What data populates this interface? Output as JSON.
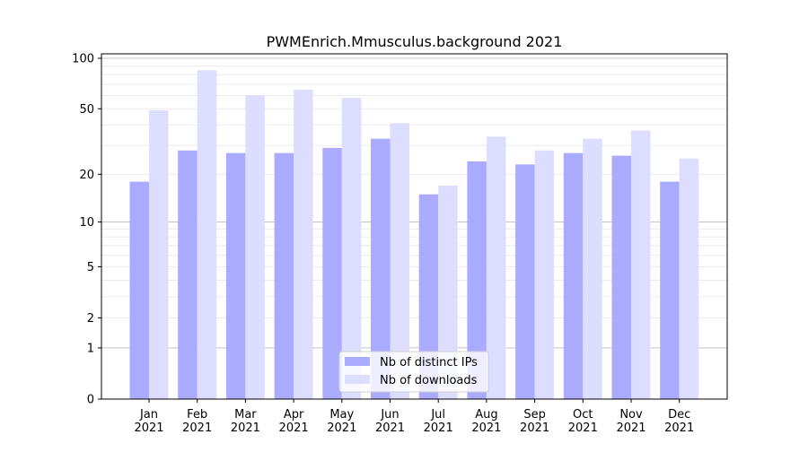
{
  "chart_data": {
    "type": "bar",
    "title": "PWMEnrich.Mmusculus.background 2021",
    "xlabel": "",
    "ylabel": "",
    "yscale": "log(y+1)",
    "ylim": [
      0,
      100
    ],
    "yticks": [
      0,
      1,
      2,
      5,
      10,
      20,
      50,
      100
    ],
    "grid": true,
    "legend_placement": "bottom-center",
    "categories": [
      "Jan\n2021",
      "Feb\n2021",
      "Mar\n2021",
      "Apr\n2021",
      "May\n2021",
      "Jun\n2021",
      "Jul\n2021",
      "Aug\n2021",
      "Sep\n2021",
      "Oct\n2021",
      "Nov\n2021",
      "Dec\n2021"
    ],
    "series": [
      {
        "name": "Nb of distinct IPs",
        "color": "#aaaaff",
        "values": [
          18,
          28,
          27,
          27,
          29,
          33,
          15,
          24,
          23,
          27,
          26,
          18
        ]
      },
      {
        "name": "Nb of downloads",
        "color": "#ddddff",
        "values": [
          49,
          85,
          60,
          65,
          58,
          41,
          17,
          34,
          28,
          33,
          37,
          25
        ]
      }
    ]
  }
}
